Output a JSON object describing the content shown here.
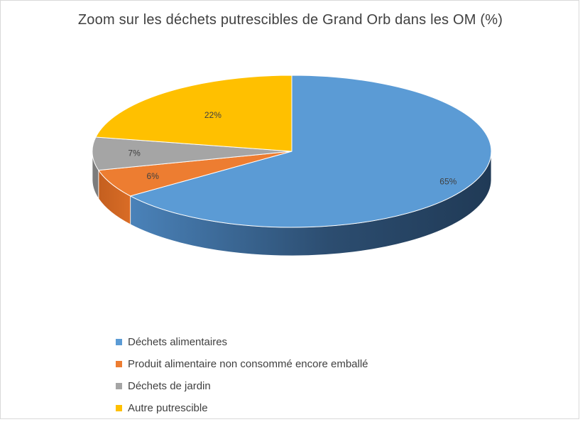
{
  "chart_data": {
    "type": "pie",
    "title": "Zoom sur les déchets putrescibles de Grand Orb dans les OM (%)",
    "legend_position": "bottom",
    "categories": [
      "Déchets alimentaires",
      "Produit alimentaire non consommé encore emballé",
      "Déchets de jardin",
      "Autre putrescible"
    ],
    "values": [
      65,
      6,
      7,
      22
    ],
    "data_labels": [
      "65%",
      "6%",
      "7%",
      "22%"
    ],
    "colors": [
      "#5b9bd5",
      "#ed7d31",
      "#a5a5a5",
      "#ffc000"
    ]
  }
}
